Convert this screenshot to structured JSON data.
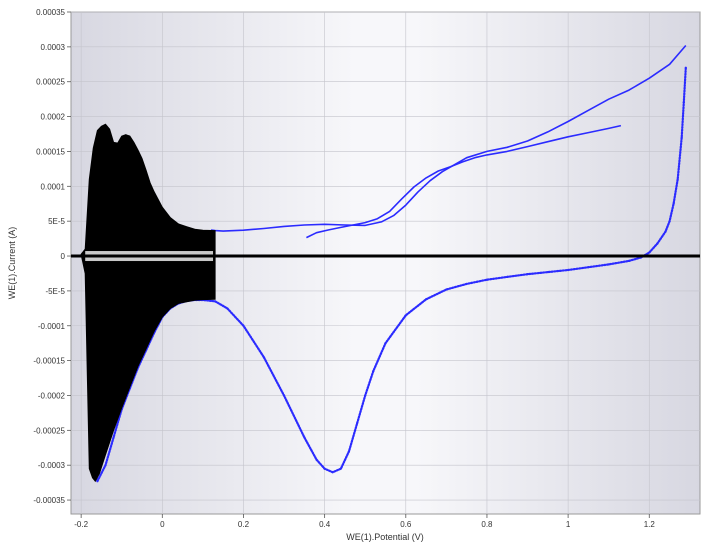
{
  "chart_data": {
    "type": "scatter",
    "title": "",
    "xlabel": "WE(1).Potential (V)",
    "ylabel": "WE(1).Current (A)",
    "xlim": [
      -0.225,
      1.325
    ],
    "ylim": [
      -0.00037,
      0.00035
    ],
    "x_ticks": [
      {
        "value": -0.2,
        "label": "-0.2"
      },
      {
        "value": 0,
        "label": "0"
      },
      {
        "value": 0.2,
        "label": "0.2"
      },
      {
        "value": 0.4,
        "label": "0.4"
      },
      {
        "value": 0.6,
        "label": "0.6"
      },
      {
        "value": 0.8,
        "label": "0.8"
      },
      {
        "value": 1,
        "label": "1"
      },
      {
        "value": 1.2,
        "label": "1.2"
      }
    ],
    "y_ticks": [
      {
        "value": 0.00035,
        "label": "0.00035"
      },
      {
        "value": 0.0003,
        "label": "0.0003"
      },
      {
        "value": 0.00025,
        "label": "0.00025"
      },
      {
        "value": 0.0002,
        "label": "0.0002"
      },
      {
        "value": 0.00015,
        "label": "0.00015"
      },
      {
        "value": 0.0001,
        "label": "0.0001"
      },
      {
        "value": 5e-05,
        "label": "5E-5"
      },
      {
        "value": 0,
        "label": "0"
      },
      {
        "value": -5e-05,
        "label": "-5E-5"
      },
      {
        "value": -0.0001,
        "label": "-0.0001"
      },
      {
        "value": -0.00015,
        "label": "-0.00015"
      },
      {
        "value": -0.0002,
        "label": "-0.0002"
      },
      {
        "value": -0.00025,
        "label": "-0.00025"
      },
      {
        "value": -0.0003,
        "label": "-0.0003"
      },
      {
        "value": -0.00035,
        "label": "-0.00035"
      }
    ],
    "grid": true,
    "series": [
      {
        "color": "#2b2bff",
        "style": "dots",
        "x": [
          -0.17,
          -0.168,
          -0.16,
          -0.14,
          -0.12,
          -0.1,
          -0.08,
          -0.06,
          -0.04,
          -0.02,
          0,
          0.02,
          0.04,
          0.06,
          0.08,
          0.1,
          0.13,
          0.16,
          0.2,
          0.25,
          0.3,
          0.35,
          0.38,
          0.4,
          0.42,
          0.44,
          0.46,
          0.48,
          0.5,
          0.52,
          0.55,
          0.6,
          0.65,
          0.7,
          0.75,
          0.8,
          0.85,
          0.9,
          0.95,
          1,
          1.05,
          1.1,
          1.15,
          1.18,
          1.2,
          1.22,
          1.24,
          1.25,
          1.26,
          1.27,
          1.28,
          1.285,
          1.29
        ],
        "y": [
          -0.00028,
          -0.0003,
          -0.000323,
          -0.0003,
          -0.00026,
          -0.00022,
          -0.00019,
          -0.00016,
          -0.000135,
          -0.00011,
          -8.75e-05,
          -7.5e-05,
          -6.8e-05,
          -6.45e-05,
          -6.3e-05,
          -6.3e-05,
          -6.5e-05,
          -7.5e-05,
          -0.0001,
          -0.000145,
          -0.0002,
          -0.00026,
          -0.000292,
          -0.000305,
          -0.00031,
          -0.000305,
          -0.00028,
          -0.00024,
          -0.0002,
          -0.000165,
          -0.000125,
          -8.5e-05,
          -6.2e-05,
          -4.8e-05,
          -4e-05,
          -3.4e-05,
          -3e-05,
          -2.6e-05,
          -2.3e-05,
          -2e-05,
          -1.6e-05,
          -1.2e-05,
          -7e-06,
          -2e-06,
          5e-06,
          1.8e-05,
          3.5e-05,
          5e-05,
          7.5e-05,
          0.00011,
          0.00017,
          0.00022,
          0.00027
        ]
      },
      {
        "color": "#2b2bff",
        "style": "line",
        "x": [
          1.29,
          1.25,
          1.2,
          1.15,
          1.1,
          1.05,
          1.0,
          0.95,
          0.9,
          0.85,
          0.8,
          0.75,
          0.72,
          0.69,
          0.66,
          0.63,
          0.6,
          0.57,
          0.54,
          0.5,
          0.45,
          0.4,
          0.35,
          0.3,
          0.25,
          0.2,
          0.15,
          0.13,
          0.12
        ],
        "y": [
          0.000302,
          0.000275,
          0.000255,
          0.000238,
          0.000225,
          0.000209,
          0.000193,
          0.000178,
          0.000165,
          0.000156,
          0.00015,
          0.000141,
          0.000131,
          0.000121,
          0.000108,
          9.2e-05,
          7.3e-05,
          5.8e-05,
          4.9e-05,
          4.4e-05,
          4.45e-05,
          4.55e-05,
          4.45e-05,
          4.25e-05,
          3.95e-05,
          3.7e-05,
          3.58e-05,
          3.65e-05,
          3.72e-05
        ]
      },
      {
        "color": "#2b2bff",
        "style": "line",
        "x": [
          0.355,
          0.38,
          0.41,
          0.44,
          0.47,
          0.5,
          0.53,
          0.56,
          0.59,
          0.62,
          0.65,
          0.68,
          0.71,
          0.74,
          0.77,
          0.8,
          0.85,
          0.9,
          0.95,
          1.0,
          1.05,
          1.1,
          1.13
        ],
        "y": [
          2.65e-05,
          3.35e-05,
          3.75e-05,
          4.1e-05,
          4.45e-05,
          4.8e-05,
          5.35e-05,
          6.4e-05,
          8.2e-05,
          9.9e-05,
          0.000112,
          0.000122,
          0.000128,
          0.000135,
          0.000141,
          0.000145,
          0.00015,
          0.000157,
          0.000164,
          0.000171,
          0.000177,
          0.000183,
          0.000187
        ]
      },
      {
        "color": "#000000",
        "style": "filled-region",
        "upper_x": [
          -0.2,
          -0.19,
          -0.18,
          -0.17,
          -0.16,
          -0.15,
          -0.14,
          -0.13,
          -0.12,
          -0.11,
          -0.1,
          -0.09,
          -0.08,
          -0.07,
          -0.06,
          -0.05,
          -0.04,
          -0.03,
          -0.02,
          0,
          0.02,
          0.04,
          0.06,
          0.08,
          0.1,
          0.13
        ],
        "upper_y": [
          2.5e-06,
          1e-05,
          0.00011,
          0.000155,
          0.00018,
          0.000186,
          0.000189,
          0.000182,
          0.000163,
          0.000162,
          0.000172,
          0.000174,
          0.000172,
          0.000163,
          0.000152,
          0.00014,
          0.000123,
          0.000105,
          9.2e-05,
          7e-05,
          5.5e-05,
          4.6e-05,
          4.2e-05,
          3.85e-05,
          3.7e-05,
          3.65e-05
        ],
        "lower_x": [
          0.13,
          0.1,
          0.08,
          0.06,
          0.04,
          0.02,
          0,
          -0.02,
          -0.04,
          -0.06,
          -0.08,
          -0.1,
          -0.12,
          -0.14,
          -0.155,
          -0.165,
          -0.172,
          -0.18,
          -0.19,
          -0.2
        ],
        "lower_y": [
          -6.2e-05,
          -6.25e-05,
          -6.35e-05,
          -6.55e-05,
          -6.8e-05,
          -7.5e-05,
          -8.75e-05,
          -0.000108,
          -0.000133,
          -0.000158,
          -0.000188,
          -0.000218,
          -0.00025,
          -0.000285,
          -0.000312,
          -0.000323,
          -0.000318,
          -0.000305,
          -2.5e-05,
          2.5e-06
        ]
      },
      {
        "color": "#000000",
        "style": "baseline",
        "x": [
          -0.225,
          1.325
        ],
        "y": [
          0,
          0
        ]
      }
    ]
  }
}
